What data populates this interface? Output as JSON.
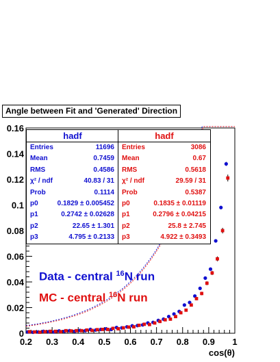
{
  "chart_data": {
    "type": "scatter",
    "title": "Angle between Fit and 'Generated' Direction",
    "xlabel": "cos(θ)",
    "ylabel": "",
    "xlim": [
      0.2,
      1.0
    ],
    "ylim": [
      0.0,
      0.16
    ],
    "x_ticks": [
      "0.2",
      "0.3",
      "0.4",
      "0.5",
      "0.6",
      "0.7",
      "0.8",
      "0.9",
      "1"
    ],
    "y_ticks": [
      "0",
      "0.02",
      "0.04",
      "0.06",
      "0.08",
      "0.1",
      "0.12",
      "0.14",
      "0.16"
    ],
    "grid": false,
    "series": [
      {
        "name": "Data - central 16N run",
        "color": "#1010d0",
        "x": [
          0.21,
          0.23,
          0.25,
          0.27,
          0.29,
          0.31,
          0.33,
          0.35,
          0.37,
          0.39,
          0.41,
          0.43,
          0.45,
          0.47,
          0.49,
          0.51,
          0.53,
          0.55,
          0.57,
          0.59,
          0.61,
          0.63,
          0.65,
          0.67,
          0.69,
          0.71,
          0.73,
          0.75,
          0.77,
          0.79,
          0.81,
          0.83,
          0.85,
          0.87,
          0.89,
          0.91,
          0.93,
          0.95,
          0.97
        ],
        "y": [
          0.001,
          0.0008,
          0.001,
          0.0015,
          0.0012,
          0.001,
          0.0018,
          0.0015,
          0.002,
          0.0015,
          0.0022,
          0.002,
          0.003,
          0.0025,
          0.003,
          0.0035,
          0.003,
          0.0045,
          0.0042,
          0.005,
          0.0058,
          0.006,
          0.0065,
          0.008,
          0.0085,
          0.01,
          0.011,
          0.013,
          0.015,
          0.017,
          0.022,
          0.024,
          0.029,
          0.035,
          0.043,
          0.05,
          0.072,
          0.098,
          0.132
        ]
      },
      {
        "name": "MC - central 16N run",
        "color": "#e01010",
        "x": [
          0.21,
          0.23,
          0.25,
          0.27,
          0.29,
          0.31,
          0.33,
          0.35,
          0.37,
          0.39,
          0.41,
          0.43,
          0.45,
          0.47,
          0.49,
          0.51,
          0.53,
          0.55,
          0.57,
          0.59,
          0.61,
          0.63,
          0.65,
          0.67,
          0.69,
          0.71,
          0.73,
          0.75,
          0.77,
          0.79,
          0.81,
          0.83,
          0.85,
          0.87,
          0.89,
          0.91,
          0.93,
          0.95,
          0.97
        ],
        "y": [
          0.0012,
          0.001,
          0.0008,
          0.0012,
          0.0015,
          0.0015,
          0.0012,
          0.002,
          0.0018,
          0.002,
          0.002,
          0.0025,
          0.0022,
          0.0028,
          0.003,
          0.003,
          0.0038,
          0.0035,
          0.0042,
          0.0048,
          0.005,
          0.0062,
          0.007,
          0.0068,
          0.008,
          0.0092,
          0.0105,
          0.011,
          0.013,
          0.016,
          0.018,
          0.022,
          0.027,
          0.031,
          0.039,
          0.047,
          0.058,
          0.08,
          0.121
        ]
      }
    ],
    "fit_curves": [
      {
        "color": "#1010d0",
        "p0": 0.1829,
        "p1": 0.2742,
        "p2": 22.65,
        "p3": 4.795
      },
      {
        "color": "#e01010",
        "p0": 0.1835,
        "p1": 0.2796,
        "p2": 25.8,
        "p3": 4.922
      }
    ],
    "stats_boxes": [
      {
        "header": "hadf",
        "color": "#1010d0",
        "rows": [
          {
            "k": "Entries",
            "v": "11696"
          },
          {
            "k": "Mean",
            "v": "0.7459"
          },
          {
            "k": "RMS",
            "v": "0.4586"
          },
          {
            "k": "χ² / ndf",
            "v": "40.83 / 31"
          },
          {
            "k": "Prob",
            "v": "0.1114"
          },
          {
            "k": "p0",
            "v": "0.1829 ± 0.005452"
          },
          {
            "k": "p1",
            "v": "0.2742 ± 0.02628"
          },
          {
            "k": "p2",
            "v": "22.65 ± 1.301"
          },
          {
            "k": "p3",
            "v": "4.795 ± 0.2133"
          }
        ]
      },
      {
        "header": "hadf",
        "color": "#e01010",
        "rows": [
          {
            "k": "Entries",
            "v": "3086"
          },
          {
            "k": "Mean",
            "v": "0.67"
          },
          {
            "k": "RMS",
            "v": "0.5618"
          },
          {
            "k": "χ² / ndf",
            "v": "29.59 / 31"
          },
          {
            "k": "Prob",
            "v": "0.5387"
          },
          {
            "k": "p0",
            "v": "0.1835 ± 0.01119"
          },
          {
            "k": "p1",
            "v": "0.2796 ± 0.04215"
          },
          {
            "k": "p2",
            "v": "25.8 ± 2.745"
          },
          {
            "k": "p3",
            "v": "4.922 ± 0.3493"
          }
        ]
      }
    ],
    "legend": [
      {
        "text": "Data - central ",
        "sup": "16",
        "tail": "N run",
        "color": "#1010d0"
      },
      {
        "text": "MC - central ",
        "sup": "16",
        "tail": "N run",
        "color": "#e01010"
      }
    ]
  }
}
